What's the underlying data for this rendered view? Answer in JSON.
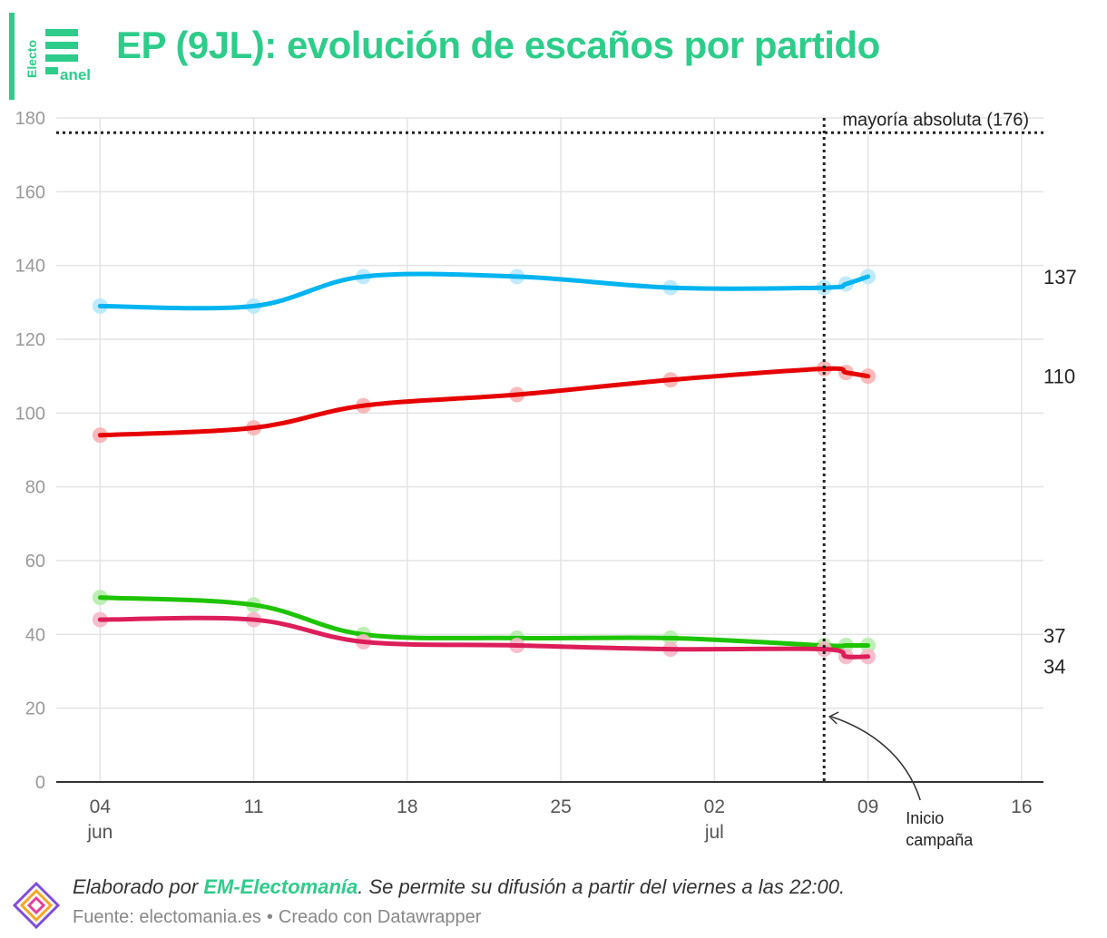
{
  "header": {
    "title": "EP (9JL): evolución de escaños por partido",
    "logo_top": "Electo",
    "logo_bottom": "anel"
  },
  "footer": {
    "credit_prefix": "Elaborado por ",
    "credit_brand": "EM-Electomanía",
    "credit_suffix": ". Se permite su difusión a partir del viernes a las 22:00.",
    "source_text": "Fuente: electomania.es",
    "separator": "•",
    "created_with": "Creado con Datawrapper"
  },
  "chart_data": {
    "type": "line",
    "xlim": [
      "2024-06-02",
      "2024-07-17"
    ],
    "ylim": [
      0,
      180
    ],
    "y_ticks": [
      0,
      20,
      40,
      60,
      80,
      100,
      120,
      140,
      160,
      180
    ],
    "x_ticks": [
      {
        "date": "2024-06-04",
        "label": "04",
        "sub": "jun"
      },
      {
        "date": "2024-06-11",
        "label": "11",
        "sub": ""
      },
      {
        "date": "2024-06-18",
        "label": "18",
        "sub": ""
      },
      {
        "date": "2024-06-25",
        "label": "25",
        "sub": ""
      },
      {
        "date": "2024-07-02",
        "label": "02",
        "sub": "jul"
      },
      {
        "date": "2024-07-09",
        "label": "09",
        "sub": ""
      },
      {
        "date": "2024-07-16",
        "label": "16",
        "sub": ""
      }
    ],
    "grid": true,
    "series": [
      {
        "color": "#00b4f0",
        "dot_color": "#b9e8fb",
        "end_label": "137",
        "points": [
          [
            "2024-06-04",
            129
          ],
          [
            "2024-06-11",
            129
          ],
          [
            "2024-06-16",
            137
          ],
          [
            "2024-06-23",
            137
          ],
          [
            "2024-06-30",
            134
          ],
          [
            "2024-07-07",
            134
          ],
          [
            "2024-07-08",
            135
          ],
          [
            "2024-07-09",
            137
          ]
        ]
      },
      {
        "color": "#e60000",
        "dot_color": "#f7b3b3",
        "end_label": "110",
        "points": [
          [
            "2024-06-04",
            94
          ],
          [
            "2024-06-11",
            96
          ],
          [
            "2024-06-16",
            102
          ],
          [
            "2024-06-23",
            105
          ],
          [
            "2024-06-30",
            109
          ],
          [
            "2024-07-07",
            112
          ],
          [
            "2024-07-08",
            111
          ],
          [
            "2024-07-09",
            110
          ]
        ]
      },
      {
        "color": "#1ec400",
        "dot_color": "#b6ecac",
        "end_label": "37",
        "points": [
          [
            "2024-06-04",
            50
          ],
          [
            "2024-06-11",
            48
          ],
          [
            "2024-06-16",
            40
          ],
          [
            "2024-06-23",
            39
          ],
          [
            "2024-06-30",
            39
          ],
          [
            "2024-07-07",
            37
          ],
          [
            "2024-07-08",
            37
          ],
          [
            "2024-07-09",
            37
          ]
        ]
      },
      {
        "color": "#dc1e5a",
        "dot_color": "#f5b8c8",
        "end_label": "34",
        "points": [
          [
            "2024-06-04",
            44
          ],
          [
            "2024-06-11",
            44
          ],
          [
            "2024-06-16",
            38
          ],
          [
            "2024-06-23",
            37
          ],
          [
            "2024-06-30",
            36
          ],
          [
            "2024-07-07",
            36
          ],
          [
            "2024-07-08",
            34
          ],
          [
            "2024-07-09",
            34
          ]
        ]
      }
    ],
    "reference_line": {
      "y": 176,
      "label": "mayoría absoluta (176)"
    },
    "vertical_marker": {
      "date": "2024-07-07",
      "label_line1": "Inicio",
      "label_line2": "campaña"
    }
  }
}
